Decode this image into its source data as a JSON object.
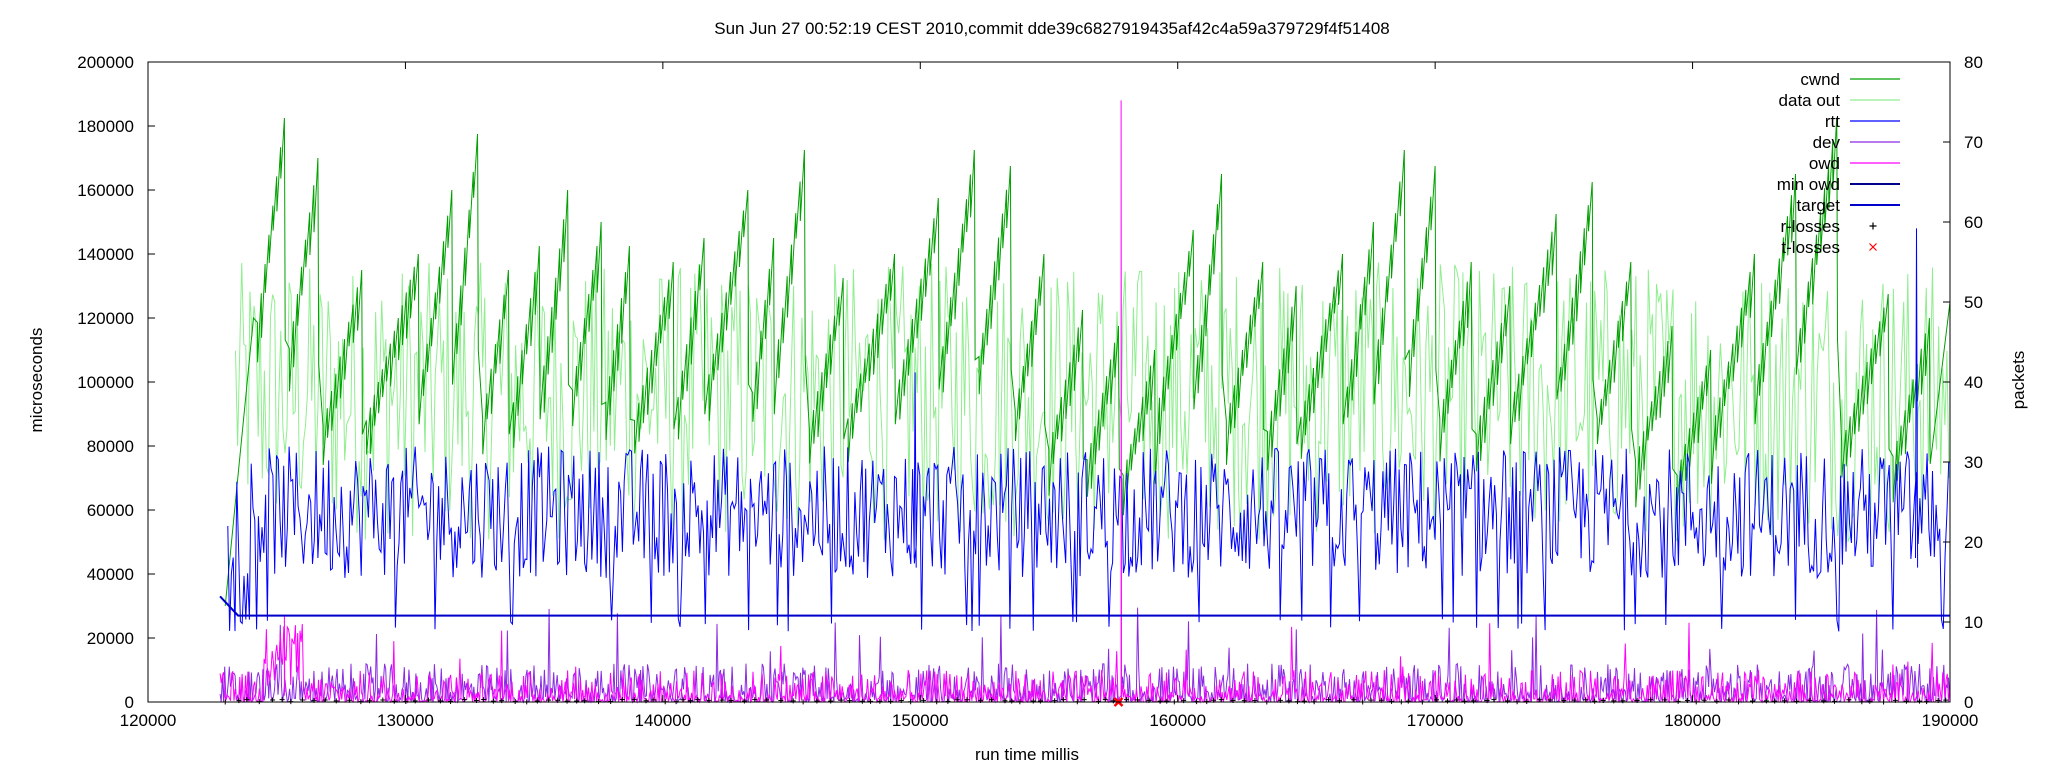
{
  "chart_data": {
    "type": "line",
    "title": "Sun Jun 27 00:52:19 CEST 2010,commit dde39c6827919435af42c4a59a379729f4f51408",
    "xlabel": "run time millis",
    "ylabel": "microseconds",
    "y2label": "packets",
    "xlim": [
      120000,
      190000
    ],
    "ylim": [
      0,
      200000
    ],
    "y2lim": [
      0,
      80
    ],
    "xticks": [
      "120000",
      "130000",
      "140000",
      "150000",
      "160000",
      "170000",
      "180000",
      "190000"
    ],
    "yticks": [
      "0",
      "20000",
      "40000",
      "60000",
      "80000",
      "100000",
      "120000",
      "140000",
      "160000",
      "180000",
      "200000"
    ],
    "y2ticks": [
      "0",
      "10",
      "20",
      "30",
      "40",
      "50",
      "60",
      "70",
      "80"
    ],
    "grid": false,
    "legend_position": "top-right",
    "series": [
      {
        "name": "cwnd",
        "axis": "y2",
        "color": "#00a000",
        "style": "line",
        "sawtooth_peaks": [
          [
            125300,
            73
          ],
          [
            126600,
            68
          ],
          [
            128300,
            54
          ],
          [
            130500,
            56
          ],
          [
            131800,
            64
          ],
          [
            132800,
            71
          ],
          [
            134000,
            54
          ],
          [
            135200,
            57
          ],
          [
            136300,
            64
          ],
          [
            137600,
            60
          ],
          [
            138700,
            57
          ],
          [
            140400,
            55
          ],
          [
            141600,
            58
          ],
          [
            143300,
            64
          ],
          [
            144300,
            58
          ],
          [
            145500,
            69
          ],
          [
            147000,
            53
          ],
          [
            149000,
            56
          ],
          [
            150700,
            63
          ],
          [
            152100,
            69
          ],
          [
            153500,
            67
          ],
          [
            154800,
            56
          ],
          [
            156300,
            49
          ],
          [
            157700,
            47
          ],
          [
            159100,
            44
          ],
          [
            160600,
            59
          ],
          [
            161700,
            66
          ],
          [
            163300,
            55
          ],
          [
            164600,
            52
          ],
          [
            166400,
            56
          ],
          [
            167600,
            60
          ],
          [
            168800,
            69
          ],
          [
            170000,
            67
          ],
          [
            171400,
            55
          ],
          [
            172900,
            52
          ],
          [
            174700,
            61
          ],
          [
            176100,
            65
          ],
          [
            177600,
            55
          ],
          [
            179200,
            47
          ],
          [
            180700,
            44
          ],
          [
            182400,
            56
          ],
          [
            184000,
            66
          ],
          [
            185600,
            73
          ],
          [
            187600,
            51
          ],
          [
            189200,
            48
          ]
        ]
      },
      {
        "name": "data out",
        "axis": "y2",
        "color": "#90ee90",
        "style": "line",
        "typical_range": [
          20,
          55
        ]
      },
      {
        "name": "rtt",
        "axis": "y1",
        "color": "#0000ff",
        "style": "line",
        "typical_range": [
          25000,
          80000
        ],
        "spikes": [
          [
            149800,
            103000
          ],
          [
            188700,
            148000
          ]
        ]
      },
      {
        "name": "dev",
        "axis": "y1",
        "color": "#8a2be2",
        "style": "line",
        "typical_range": [
          0,
          12000
        ]
      },
      {
        "name": "owd",
        "axis": "y1",
        "color": "#ff00ff",
        "style": "line",
        "typical_range": [
          0,
          10000
        ],
        "spikes": [
          [
            157800,
            188000
          ],
          [
            125300,
            27000
          ]
        ]
      },
      {
        "name": "min owd",
        "axis": "y1",
        "color": "#00008b",
        "style": "line",
        "x": [
          122800,
          123500,
          190000
        ],
        "y": [
          33000,
          27000,
          27000
        ]
      },
      {
        "name": "target",
        "axis": "y1",
        "color": "#0000cd",
        "style": "line",
        "x": [
          122800,
          123500,
          190000
        ],
        "y": [
          33000,
          27000,
          27000
        ]
      },
      {
        "name": "r-losses",
        "axis": "y1",
        "color": "#000000",
        "style": "points",
        "marker": "+"
      },
      {
        "name": "t-losses",
        "axis": "y1",
        "color": "#ff0000",
        "style": "points",
        "marker": "x",
        "points": [
          [
            157700,
            0
          ]
        ]
      }
    ]
  }
}
